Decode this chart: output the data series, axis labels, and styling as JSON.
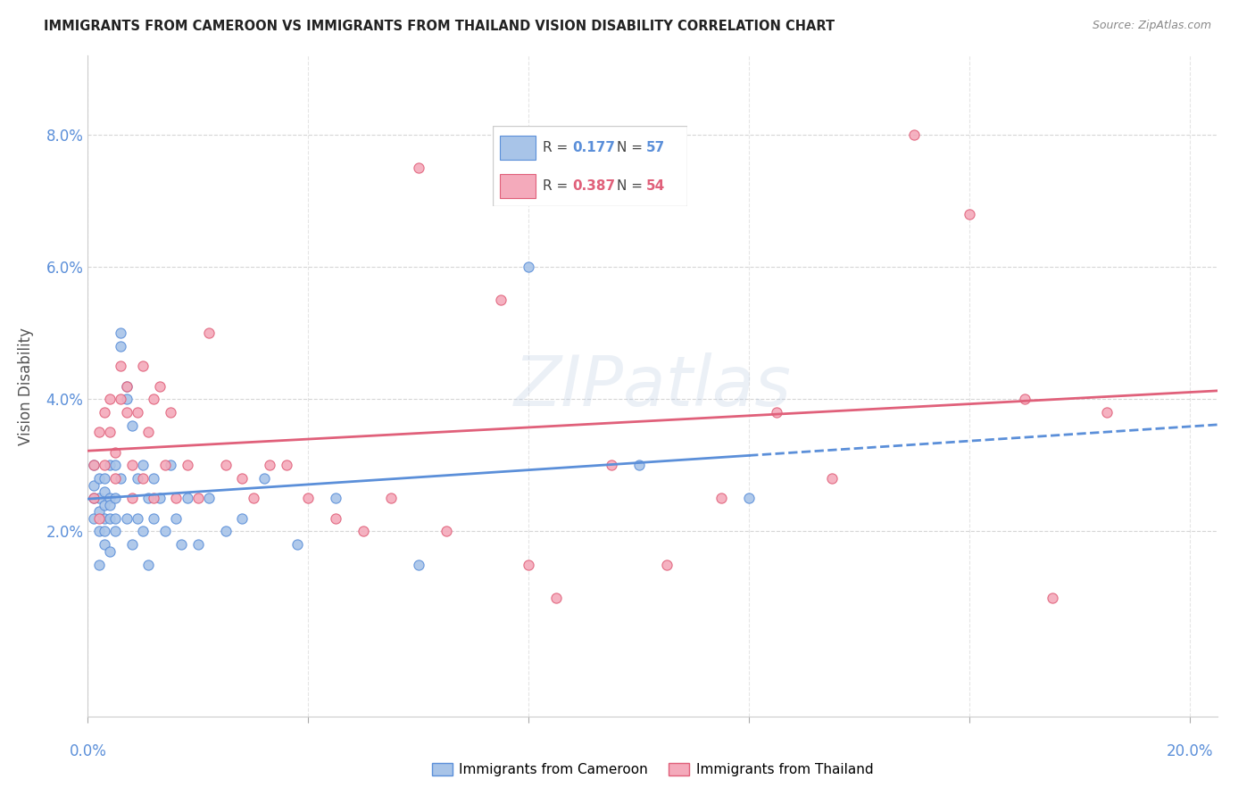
{
  "title": "IMMIGRANTS FROM CAMEROON VS IMMIGRANTS FROM THAILAND VISION DISABILITY CORRELATION CHART",
  "source": "Source: ZipAtlas.com",
  "ylabel": "Vision Disability",
  "yticks": [
    "2.0%",
    "4.0%",
    "6.0%",
    "8.0%"
  ],
  "ytick_vals": [
    0.02,
    0.04,
    0.06,
    0.08
  ],
  "xlim": [
    0.0,
    0.205
  ],
  "ylim": [
    -0.008,
    0.092
  ],
  "color_cameroon_fill": "#a8c4e8",
  "color_cameroon_edge": "#5b8fd9",
  "color_thailand_fill": "#f4aabb",
  "color_thailand_edge": "#e0607a",
  "color_cam_line": "#5b8fd9",
  "color_thai_line": "#e0607a",
  "color_ytick": "#5b8fd9",
  "color_xtick": "#5b8fd9",
  "cam_x": [
    0.001,
    0.001,
    0.001,
    0.001,
    0.002,
    0.002,
    0.002,
    0.002,
    0.002,
    0.003,
    0.003,
    0.003,
    0.003,
    0.003,
    0.003,
    0.004,
    0.004,
    0.004,
    0.004,
    0.004,
    0.005,
    0.005,
    0.005,
    0.005,
    0.006,
    0.006,
    0.006,
    0.007,
    0.007,
    0.007,
    0.008,
    0.008,
    0.009,
    0.009,
    0.01,
    0.01,
    0.011,
    0.011,
    0.012,
    0.012,
    0.013,
    0.014,
    0.015,
    0.016,
    0.017,
    0.018,
    0.02,
    0.022,
    0.025,
    0.028,
    0.032,
    0.038,
    0.045,
    0.06,
    0.08,
    0.1,
    0.12
  ],
  "cam_y": [
    0.025,
    0.022,
    0.027,
    0.03,
    0.02,
    0.023,
    0.025,
    0.028,
    0.015,
    0.024,
    0.026,
    0.022,
    0.018,
    0.028,
    0.02,
    0.025,
    0.03,
    0.022,
    0.017,
    0.024,
    0.03,
    0.025,
    0.02,
    0.022,
    0.048,
    0.05,
    0.028,
    0.042,
    0.04,
    0.022,
    0.036,
    0.018,
    0.028,
    0.022,
    0.03,
    0.02,
    0.025,
    0.015,
    0.028,
    0.022,
    0.025,
    0.02,
    0.03,
    0.022,
    0.018,
    0.025,
    0.018,
    0.025,
    0.02,
    0.022,
    0.028,
    0.018,
    0.025,
    0.015,
    0.06,
    0.03,
    0.025
  ],
  "thai_x": [
    0.001,
    0.001,
    0.002,
    0.002,
    0.003,
    0.003,
    0.004,
    0.004,
    0.005,
    0.005,
    0.006,
    0.006,
    0.007,
    0.007,
    0.008,
    0.008,
    0.009,
    0.01,
    0.01,
    0.011,
    0.012,
    0.012,
    0.013,
    0.014,
    0.015,
    0.016,
    0.018,
    0.02,
    0.022,
    0.025,
    0.028,
    0.03,
    0.033,
    0.036,
    0.04,
    0.045,
    0.05,
    0.055,
    0.06,
    0.065,
    0.075,
    0.085,
    0.095,
    0.105,
    0.115,
    0.125,
    0.135,
    0.15,
    0.16,
    0.17,
    0.08,
    0.09,
    0.175,
    0.185
  ],
  "thai_y": [
    0.025,
    0.03,
    0.022,
    0.035,
    0.03,
    0.038,
    0.035,
    0.04,
    0.028,
    0.032,
    0.04,
    0.045,
    0.038,
    0.042,
    0.03,
    0.025,
    0.038,
    0.045,
    0.028,
    0.035,
    0.04,
    0.025,
    0.042,
    0.03,
    0.038,
    0.025,
    0.03,
    0.025,
    0.05,
    0.03,
    0.028,
    0.025,
    0.03,
    0.03,
    0.025,
    0.022,
    0.02,
    0.025,
    0.075,
    0.02,
    0.055,
    0.01,
    0.03,
    0.015,
    0.025,
    0.038,
    0.028,
    0.08,
    0.068,
    0.04,
    0.015,
    0.08,
    0.01,
    0.038
  ]
}
